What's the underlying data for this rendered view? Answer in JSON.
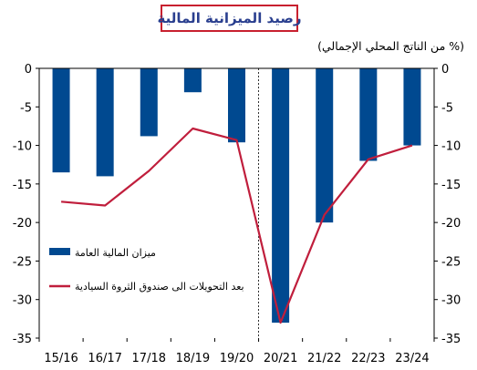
{
  "header": {
    "title": "رصيد الميزانية المالية",
    "unit_label": "(% من الناتج المحلي الإجمالي)"
  },
  "colors": {
    "bar": "#004990",
    "line": "#c01e3c",
    "title_border": "#c8202f",
    "title_text": "#2a3f8f"
  },
  "chart_data": {
    "type": "bar",
    "title": "رصيد الميزانية المالية",
    "categories": [
      "15/16",
      "16/17",
      "17/18",
      "18/19",
      "19/20",
      "20/21",
      "21/22",
      "22/23",
      "23/24"
    ],
    "series": [
      {
        "name": "ميزان المالية العامة",
        "type": "bar",
        "values": [
          -13.5,
          -14.0,
          -8.8,
          -3.1,
          -9.6,
          -33.0,
          -20.0,
          -12.0,
          -10.0
        ]
      },
      {
        "name": "بعد التحويلات الى صندوق الثروة السيادية",
        "type": "line",
        "values": [
          -17.3,
          -17.8,
          -13.3,
          -7.8,
          -9.3,
          -33.0,
          -19.0,
          -11.8,
          -10.0
        ]
      }
    ],
    "ylim": [
      -35,
      0
    ],
    "yticks": [
      "0",
      "-5",
      "-10",
      "-15",
      "-20",
      "-25",
      "-30",
      "-35"
    ],
    "y_axis_both_sides": true,
    "vertical_divider_after": "19/20",
    "legend_position": "lower-left",
    "grid": false
  }
}
